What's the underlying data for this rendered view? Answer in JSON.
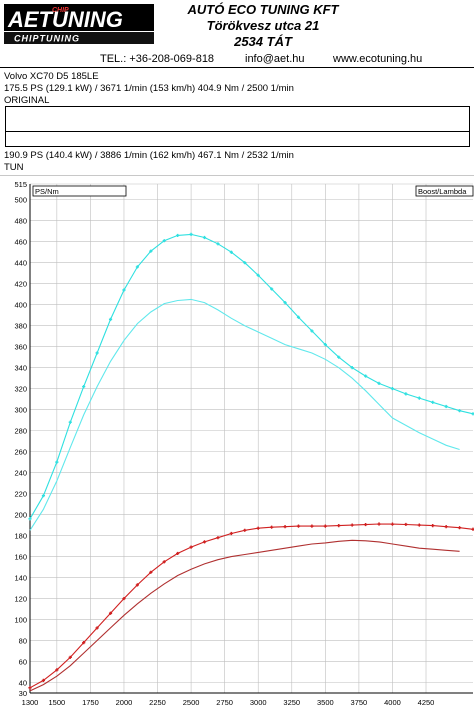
{
  "header": {
    "logo_primary": "AETUNING",
    "logo_chip": "CHIP",
    "logo_sub": "CHIPTUNING",
    "company_name": "AUTÓ ECO TUNING KFT",
    "address_street": "Törökvesz utca 21",
    "address_city": "2534 TÁT",
    "phone": "TEL.: +36-208-069-818",
    "email": "info@aet.hu",
    "website": "www.ecotuning.hu"
  },
  "vehicle": {
    "model": "Volvo XC70 D5 185LE",
    "original_line": "175.5 PS  (129.1 kW) / 3671 1/min (153 km/h)     404.9 Nm / 2500 1/min",
    "original_label": "ORIGINAL",
    "tuned_line": "190.9 PS  (140.4 kW) / 3886 1/min (162 km/h)     467.1 Nm / 2532 1/min",
    "tuned_label": "TUN"
  },
  "chart_data": {
    "type": "line",
    "left_axis_label": "PS/Nm",
    "right_axis_label": "Boost/Lambda",
    "xlim": [
      1300,
      4600
    ],
    "ylim": [
      30,
      515
    ],
    "x_ticks": [
      1300,
      1500,
      1750,
      2000,
      2250,
      2500,
      2750,
      3000,
      3250,
      3500,
      3750,
      4000,
      4250
    ],
    "y_ticks": [
      30,
      40,
      60,
      80,
      100,
      120,
      140,
      160,
      180,
      200,
      220,
      240,
      260,
      280,
      300,
      320,
      340,
      360,
      380,
      400,
      420,
      440,
      460,
      480,
      500,
      515
    ],
    "grid": true,
    "colors": {
      "torque_tuned": "#2ee0e0",
      "torque_original": "#60e8ec",
      "power_tuned": "#d02020",
      "power_original": "#b03030",
      "grid": "#bfbfbf"
    },
    "series": [
      {
        "key": "torque_tuned",
        "marker": true,
        "x": [
          1300,
          1400,
          1500,
          1600,
          1700,
          1800,
          1900,
          2000,
          2100,
          2200,
          2300,
          2400,
          2500,
          2600,
          2700,
          2800,
          2900,
          3000,
          3100,
          3200,
          3300,
          3400,
          3500,
          3600,
          3700,
          3800,
          3900,
          4000,
          4100,
          4200,
          4300,
          4400,
          4500,
          4600
        ],
        "values": [
          196,
          218,
          250,
          288,
          322,
          354,
          386,
          414,
          436,
          451,
          461,
          466,
          467,
          464,
          458,
          450,
          440,
          428,
          415,
          402,
          388,
          375,
          362,
          350,
          340,
          332,
          325,
          320,
          315,
          311,
          307,
          303,
          299,
          296
        ]
      },
      {
        "key": "torque_original",
        "marker": false,
        "x": [
          1300,
          1400,
          1500,
          1600,
          1700,
          1800,
          1900,
          2000,
          2100,
          2200,
          2300,
          2400,
          2500,
          2600,
          2700,
          2800,
          2900,
          3000,
          3100,
          3200,
          3300,
          3400,
          3500,
          3600,
          3700,
          3800,
          3900,
          4000,
          4100,
          4200,
          4300,
          4400,
          4500
        ],
        "values": [
          185,
          205,
          232,
          264,
          295,
          322,
          346,
          366,
          382,
          393,
          401,
          404,
          405,
          402,
          395,
          387,
          380,
          374,
          368,
          362,
          358,
          354,
          348,
          340,
          330,
          318,
          305,
          292,
          285,
          278,
          272,
          266,
          262
        ]
      },
      {
        "key": "power_tuned",
        "marker": true,
        "x": [
          1300,
          1400,
          1500,
          1600,
          1700,
          1800,
          1900,
          2000,
          2100,
          2200,
          2300,
          2400,
          2500,
          2600,
          2700,
          2800,
          2900,
          3000,
          3100,
          3200,
          3300,
          3400,
          3500,
          3600,
          3700,
          3800,
          3900,
          4000,
          4100,
          4200,
          4300,
          4400,
          4500,
          4600
        ],
        "values": [
          35,
          42,
          52,
          64,
          78,
          92,
          106,
          120,
          133,
          145,
          155,
          163,
          169,
          174,
          178,
          182,
          185,
          187,
          188,
          188.5,
          189,
          189,
          189,
          189.5,
          190,
          190.5,
          191,
          190.9,
          190.6,
          190,
          189.5,
          188.5,
          187.5,
          186
        ]
      },
      {
        "key": "power_original",
        "marker": false,
        "x": [
          1300,
          1400,
          1500,
          1600,
          1700,
          1800,
          1900,
          2000,
          2100,
          2200,
          2300,
          2400,
          2500,
          2600,
          2700,
          2800,
          2900,
          3000,
          3100,
          3200,
          3300,
          3400,
          3500,
          3600,
          3700,
          3800,
          3900,
          4000,
          4100,
          4200,
          4300,
          4400,
          4500
        ],
        "values": [
          32,
          38,
          46,
          56,
          68,
          80,
          92,
          104,
          115,
          125,
          134,
          142,
          148,
          153,
          157,
          160,
          162,
          164,
          166,
          168,
          170,
          172,
          173,
          174.5,
          175.5,
          175,
          174,
          172,
          170,
          168,
          167,
          166,
          165
        ]
      }
    ]
  }
}
